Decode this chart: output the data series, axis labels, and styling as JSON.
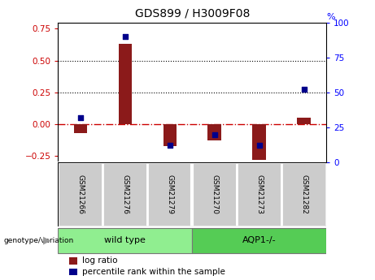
{
  "title": "GDS899 / H3009F08",
  "samples": [
    "GSM21266",
    "GSM21276",
    "GSM21279",
    "GSM21270",
    "GSM21273",
    "GSM21282"
  ],
  "log_ratio": [
    -0.07,
    0.63,
    -0.17,
    -0.13,
    -0.28,
    0.05
  ],
  "percentile_rank": [
    32,
    90,
    12,
    20,
    12,
    52
  ],
  "bar_color": "#8B1A1A",
  "dot_color": "#00008B",
  "left_ylim": [
    -0.3,
    0.8
  ],
  "right_ylim": [
    0,
    100
  ],
  "left_yticks": [
    -0.25,
    0,
    0.25,
    0.5,
    0.75
  ],
  "right_yticks": [
    0,
    25,
    50,
    75,
    100
  ],
  "hline_y": [
    0.25,
    0.5
  ],
  "legend_log_ratio": "log ratio",
  "legend_percentile": "percentile rank within the sample",
  "genotype_label": "genotype/variation",
  "wt_label": "wild type",
  "aqp_label": "AQP1-/-",
  "group_color": "#90EE90",
  "sample_box_color": "#cccccc",
  "bar_width": 0.3,
  "dot_size": 18
}
